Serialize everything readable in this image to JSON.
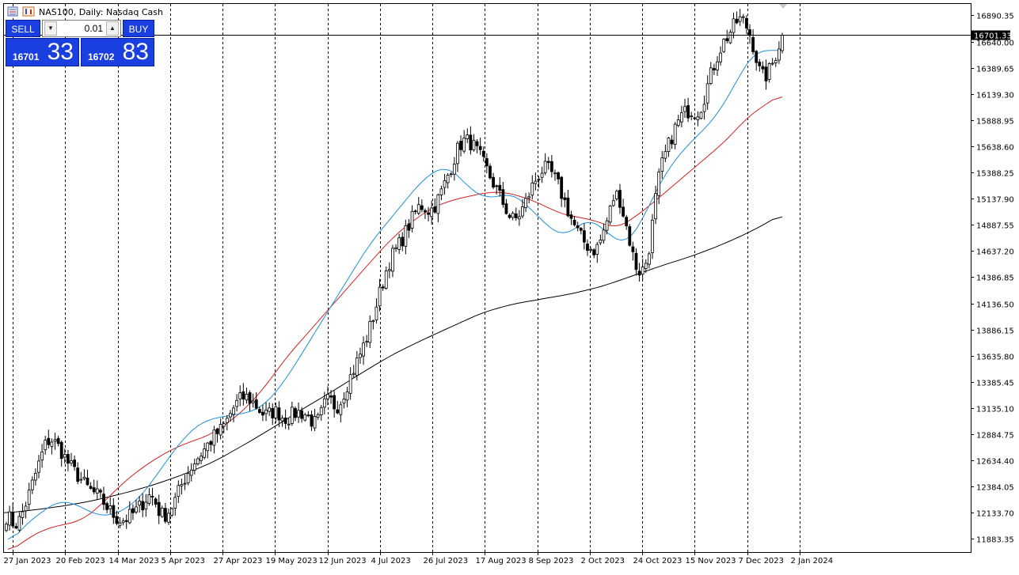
{
  "header": {
    "symbol_label": "NAS100, Daily:  Nasdaq Cash"
  },
  "trade_panel": {
    "sell_label": "SELL",
    "buy_label": "BUY",
    "lot_value": "0.01",
    "sell_price_prefix": "16701",
    "sell_price_suffix": "33",
    "buy_price_prefix": "16702",
    "buy_price_suffix": "83"
  },
  "current_price": {
    "label": "16701.33",
    "value": 16701.33
  },
  "colors": {
    "ema_fast": "#1e8fd6",
    "ema_mid": "#d42020",
    "sma_slow": "#000000",
    "panel_blue": "#1a3fe0",
    "candle": "#000000"
  },
  "chart_data": {
    "type": "candlestick",
    "instrument": "NAS100",
    "timeframe": "Daily",
    "ylim": [
      11758,
      17000
    ],
    "y_ticks": [
      "16890.35",
      "16640.00",
      "16389.65",
      "16139.30",
      "15888.95",
      "15638.60",
      "15388.25",
      "15137.90",
      "14887.55",
      "14637.20",
      "14386.85",
      "14136.50",
      "13886.15",
      "13635.80",
      "13385.45",
      "13135.10",
      "12884.75",
      "12634.40",
      "12384.05",
      "12133.70",
      "11883.35"
    ],
    "x_labels": [
      "27 Jan 2023",
      "20 Feb 2023",
      "14 Mar 2023",
      "5 Apr 2023",
      "27 Apr 2023",
      "19 May 2023",
      "12 Jun 2023",
      "4 Jul 2023",
      "26 Jul 2023",
      "17 Aug 2023",
      "8 Sep 2023",
      "2 Oct 2023",
      "24 Oct 2023",
      "15 Nov 2023",
      "7 Dec 2023",
      "2 Jan 2024"
    ],
    "grid": "vertical-dashed",
    "series": [
      {
        "name": "close",
        "values": [
          12120,
          11990,
          12250,
          12560,
          12860,
          12780,
          12600,
          12480,
          12350,
          12290,
          12150,
          12050,
          12100,
          12200,
          12340,
          12080,
          12180,
          12420,
          12600,
          12720,
          12860,
          12950,
          13150,
          13260,
          13180,
          13050,
          13120,
          13020,
          13100,
          13080,
          12950,
          13250,
          13120,
          13380,
          13600,
          13850,
          14200,
          14550,
          14700,
          14900,
          15100,
          15000,
          15180,
          15450,
          15700,
          15680,
          15500,
          15300,
          15100,
          14900,
          15050,
          15300,
          15450,
          15350,
          15100,
          14850,
          14700,
          14620,
          14900,
          15250,
          14850,
          14400,
          14520,
          15350,
          15650,
          15900,
          16000,
          15950,
          16300,
          16580,
          16740,
          16890,
          16700,
          16250,
          16400,
          16710
        ]
      },
      {
        "name": "ema_fast",
        "values": [
          11820,
          11980,
          12080,
          12180,
          12250,
          12230,
          12170,
          12100,
          12110,
          12160,
          12250,
          12400,
          12580,
          12750,
          12900,
          13000,
          13040,
          13060,
          13080,
          13100,
          13180,
          13320,
          13500,
          13700,
          13900,
          14100,
          14300,
          14500,
          14700,
          14850,
          15000,
          15150,
          15300,
          15400,
          15450,
          15350,
          15200,
          15150,
          15150,
          15200,
          15100,
          14980,
          14850,
          14780,
          14850,
          14960,
          14860,
          14750,
          14700,
          14900,
          15150,
          15400,
          15550,
          15700,
          15800,
          15950,
          16150,
          16390,
          16560,
          16550,
          16560
        ]
      },
      {
        "name": "ema_mid",
        "values": [
          11750,
          11880,
          11980,
          12020,
          12060,
          12200,
          12380,
          12530,
          12650,
          12750,
          12820,
          12880,
          13000,
          13150,
          13350,
          13600,
          13800,
          14000,
          14200,
          14400,
          14600,
          14790,
          14930,
          15050,
          15120,
          15160,
          15200,
          15200,
          15150,
          15080,
          14990,
          14960,
          14920,
          14850,
          14960,
          15100,
          15250,
          15400,
          15550,
          15700,
          15900,
          16030,
          16140
        ]
      },
      {
        "name": "sma_slow",
        "values": [
          12130,
          12160,
          12200,
          12250,
          12320,
          12400,
          12500,
          12620,
          12780,
          12950,
          13130,
          13300,
          13480,
          13650,
          13790,
          13920,
          14050,
          14130,
          14180,
          14230,
          14300,
          14400,
          14500,
          14590,
          14700,
          14830,
          14990
        ]
      }
    ]
  }
}
